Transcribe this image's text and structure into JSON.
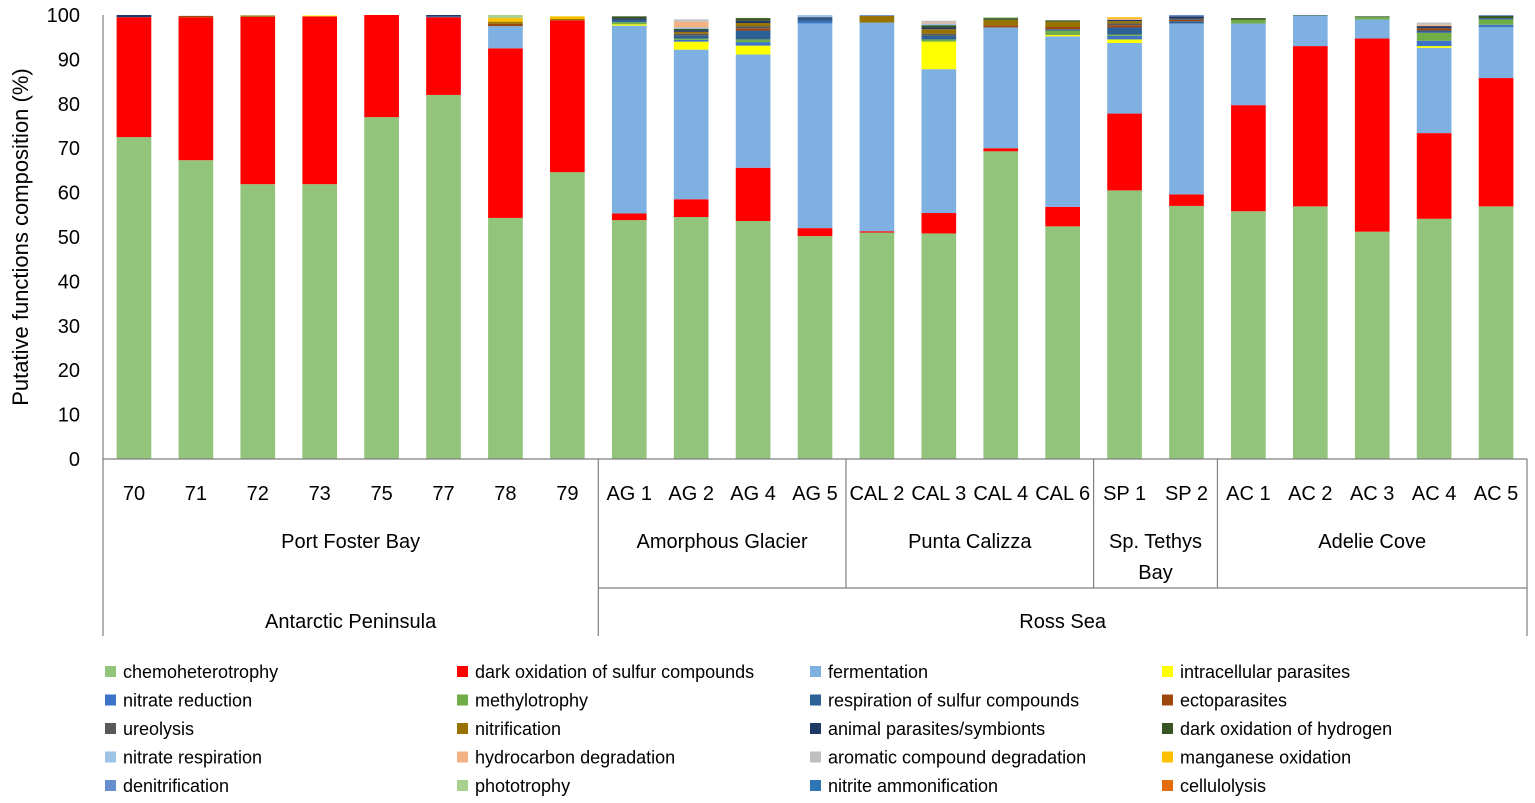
{
  "chart_data": {
    "type": "bar",
    "stacked": true,
    "ylabel": "Putative functions composition (%)",
    "ylim": [
      0,
      100
    ],
    "yticks": [
      0,
      10,
      20,
      30,
      40,
      50,
      60,
      70,
      80,
      90,
      100
    ],
    "categories": [
      "70",
      "71",
      "72",
      "73",
      "75",
      "77",
      "78",
      "79",
      "AG 1",
      "AG 2",
      "AG 4",
      "AG 5",
      "CAL 2",
      "CAL 3",
      "CAL 4",
      "CAL 6",
      "SP 1",
      "SP 2",
      "AC 1",
      "AC 2",
      "AC 3",
      "AC 4",
      "AC 5"
    ],
    "site_groups": [
      {
        "name": "Port Foster Bay",
        "lines": [
          "Port Foster Bay"
        ],
        "start": 0,
        "end": 7
      },
      {
        "name": "Amorphous Glacier",
        "lines": [
          "Amorphous Glacier"
        ],
        "start": 8,
        "end": 11
      },
      {
        "name": "Punta Calizza",
        "lines": [
          "Punta Calizza"
        ],
        "start": 12,
        "end": 15
      },
      {
        "name": "Sp. Tethys Bay",
        "lines": [
          "Sp. Tethys",
          "Bay"
        ],
        "start": 16,
        "end": 17
      },
      {
        "name": "Adelie Cove",
        "lines": [
          "Adelie Cove"
        ],
        "start": 18,
        "end": 22
      }
    ],
    "region_groups": [
      {
        "name": "Antarctic Peninsula",
        "start": 0,
        "end": 7
      },
      {
        "name": "Ross Sea",
        "start": 8,
        "end": 22
      }
    ],
    "legend": [
      "chemoheterotrophy",
      "dark oxidation of sulfur compounds",
      "fermentation",
      "intracellular parasites",
      "nitrate reduction",
      "methylotrophy",
      "respiration of sulfur compounds",
      "ectoparasites",
      "ureolysis",
      "nitrification",
      "animal parasites/symbionts",
      "dark oxidation of hydrogen",
      "nitrate respiration",
      "hydrocarbon degradation",
      "aromatic compound degradation",
      "manganese oxidation",
      "denitrification",
      "phototrophy",
      "nitrite ammonification",
      "cellulolysis"
    ],
    "series": [
      {
        "name": "chemoheterotrophy",
        "color": "#92C47C",
        "values": [
          72.5,
          67.3,
          61.9,
          61.9,
          77,
          82,
          54.3,
          64.6,
          53.8,
          54.5,
          53.6,
          50.2,
          51,
          50.8,
          69.3,
          52.4,
          60.5,
          57,
          55.8,
          56.9,
          51.2,
          54.1,
          56.9
        ]
      },
      {
        "name": "dark oxidation of sulfur compounds",
        "color": "#FF0000",
        "values": [
          27,
          32.2,
          37.7,
          37.8,
          23,
          17.5,
          38.2,
          34.2,
          1.5,
          4,
          12,
          1.8,
          0.3,
          4.6,
          0.7,
          4.4,
          17.3,
          2.6,
          23.9,
          36.1,
          43.5,
          19.3,
          28.9
        ]
      },
      {
        "name": "fermentation",
        "color": "#7EB1E1",
        "values": [
          0,
          0,
          0,
          0,
          0,
          0,
          5,
          0,
          42.3,
          33.7,
          25.5,
          46.1,
          47,
          32.4,
          27.2,
          38.4,
          15.9,
          38.5,
          18.4,
          6.9,
          4.3,
          19.2,
          11.5
        ]
      },
      {
        "name": "intracellular parasites",
        "color": "#FFFF00",
        "values": [
          0,
          0,
          0,
          0.2,
          0,
          0,
          0,
          0,
          0.3,
          1.8,
          2,
          0,
          0,
          6.2,
          0,
          0.3,
          0.8,
          0,
          0,
          0,
          0,
          0.4,
          0
        ]
      },
      {
        "name": "nitrate reduction",
        "color": "#3A73C8",
        "values": [
          0,
          0,
          0,
          0,
          0,
          0,
          0,
          0,
          0,
          0.4,
          0.8,
          0.4,
          0,
          0,
          0,
          0,
          0.8,
          0,
          0,
          0,
          0,
          1.2,
          0.5
        ]
      },
      {
        "name": "methylotrophy",
        "color": "#70AD47",
        "values": [
          0,
          0,
          0,
          0,
          0,
          0,
          0,
          0,
          0.5,
          0.3,
          0.6,
          0,
          0,
          0.5,
          0,
          1,
          0.3,
          0,
          0.8,
          0,
          0.5,
          1.8,
          1.2
        ]
      },
      {
        "name": "respiration of sulfur compounds",
        "color": "#2C6097",
        "values": [
          0,
          0,
          0,
          0,
          0,
          0.2,
          0,
          0,
          0.5,
          0.6,
          2,
          0.7,
          0,
          0.8,
          0,
          0.3,
          1.6,
          0.5,
          0,
          0,
          0,
          0.5,
          0.3
        ]
      },
      {
        "name": "ectoparasites",
        "color": "#9E480E",
        "values": [
          0,
          0.3,
          0,
          0,
          0,
          0,
          0.5,
          0,
          0,
          0,
          0.5,
          0,
          0,
          0,
          0.5,
          0.5,
          0.5,
          0.3,
          0,
          0,
          0,
          0.5,
          0
        ]
      },
      {
        "name": "ureolysis",
        "color": "#595959",
        "values": [
          0,
          0,
          0,
          0,
          0,
          0,
          0,
          0,
          0,
          0.5,
          0.5,
          0,
          0,
          0.5,
          0,
          0,
          0.4,
          0.3,
          0,
          0,
          0,
          0,
          0
        ]
      },
      {
        "name": "nitrification",
        "color": "#997300",
        "values": [
          0,
          0,
          0.3,
          0,
          0,
          0,
          0.5,
          0.3,
          0,
          0.4,
          0.7,
          0,
          1.5,
          1,
          1.2,
          1.2,
          0.5,
          0,
          0,
          0,
          0,
          0,
          0
        ]
      },
      {
        "name": "animal parasites/symbionts",
        "color": "#203864",
        "values": [
          0.5,
          0,
          0,
          0,
          0,
          0.3,
          0,
          0,
          0.3,
          0.4,
          0.5,
          0.3,
          0,
          0.4,
          0,
          0,
          0.3,
          0.5,
          0,
          0,
          0,
          0.5,
          0
        ]
      },
      {
        "name": "dark oxidation of hydrogen",
        "color": "#375623",
        "values": [
          0,
          0,
          0,
          0,
          0,
          0,
          0,
          0,
          0.5,
          0.3,
          0.6,
          0,
          0,
          0.5,
          0.4,
          0.3,
          0,
          0,
          0.4,
          0.3,
          0.2,
          0,
          0.5
        ]
      },
      {
        "name": "nitrate respiration",
        "color": "#9DC3E6",
        "values": [
          0,
          0,
          0,
          0,
          0,
          0,
          0,
          0,
          0,
          0.3,
          0,
          0.5,
          0,
          0.4,
          0,
          0,
          0,
          0,
          0,
          0,
          0,
          0,
          0
        ]
      },
      {
        "name": "hydrocarbon degradation",
        "color": "#F4B183",
        "values": [
          0,
          0,
          0,
          0,
          0,
          0,
          0,
          0,
          0,
          1.3,
          0,
          0,
          0,
          0.3,
          0,
          0,
          0.3,
          0,
          0,
          0,
          0,
          0.3,
          0
        ]
      },
      {
        "name": "aromatic compound degradation",
        "color": "#BFBFBF",
        "values": [
          0,
          0,
          0,
          0,
          0,
          0,
          0,
          0,
          0,
          0.5,
          0,
          0,
          0,
          0.3,
          0,
          0,
          0,
          0,
          0,
          0,
          0,
          0.5,
          0
        ]
      },
      {
        "name": "manganese oxidation",
        "color": "#FFC000",
        "values": [
          0,
          0,
          0,
          0,
          0,
          0,
          0.8,
          0.6,
          0,
          0,
          0,
          0,
          0,
          0,
          0,
          0,
          0.3,
          0,
          0,
          0,
          0,
          0,
          0
        ]
      },
      {
        "name": "denitrification",
        "color": "#698ED0",
        "values": [
          0,
          0,
          0,
          0,
          0,
          0,
          0,
          0,
          0,
          0,
          0,
          0,
          0.2,
          0,
          0,
          0,
          0,
          0.3,
          0,
          0,
          0,
          0,
          0.2
        ]
      },
      {
        "name": "phototrophy",
        "color": "#A9D18E",
        "values": [
          0,
          0,
          0,
          0,
          0,
          0,
          0.7,
          0,
          0,
          0,
          0,
          0,
          0,
          0,
          0.2,
          0,
          0,
          0,
          0,
          0,
          0,
          0,
          0
        ]
      },
      {
        "name": "nitrite ammonification",
        "color": "#2E75B6",
        "values": [
          0,
          0,
          0,
          0,
          0,
          0,
          0,
          0,
          0,
          0,
          0,
          0,
          0,
          0,
          0,
          0,
          0,
          0,
          0,
          0,
          0,
          0,
          0
        ]
      },
      {
        "name": "cellulolysis",
        "color": "#E46C0A",
        "values": [
          0,
          0,
          0,
          0,
          0,
          0,
          0,
          0,
          0,
          0,
          0,
          0,
          0,
          0,
          0,
          0,
          0,
          0,
          0,
          0,
          0,
          0,
          0
        ]
      }
    ]
  }
}
